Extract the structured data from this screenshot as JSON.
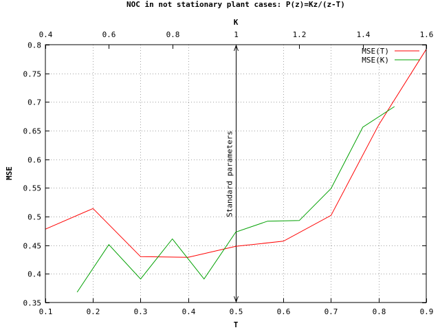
{
  "chart_data": {
    "type": "line",
    "title": "NOC in not stationary plant cases: P(z)=Kz/(z-T)",
    "xlabel": "T",
    "x2label": "K",
    "ylabel": "MSE",
    "xlim": [
      0.1,
      0.9
    ],
    "x2lim": [
      0.4,
      1.6
    ],
    "ylim": [
      0.35,
      0.8
    ],
    "x_ticks": [
      "0.1",
      "0.2",
      "0.3",
      "0.4",
      "0.5",
      "0.6",
      "0.7",
      "0.8",
      "0.9"
    ],
    "x2_ticks": [
      "0.4",
      "0.6",
      "0.8",
      "1",
      "1.2",
      "1.4",
      "1.6"
    ],
    "y_ticks": [
      "0.35",
      "0.4",
      "0.45",
      "0.5",
      "0.55",
      "0.6",
      "0.65",
      "0.7",
      "0.75",
      "0.8"
    ],
    "grid": true,
    "legend_position": "top-right",
    "series": [
      {
        "name": "MSE(T)",
        "axis": "x",
        "color": "#ff0000",
        "points": [
          [
            0.1,
            0.478
          ],
          [
            0.2,
            0.514
          ],
          [
            0.3,
            0.43
          ],
          [
            0.4,
            0.429
          ],
          [
            0.5,
            0.448
          ],
          [
            0.6,
            0.457
          ],
          [
            0.7,
            0.502
          ],
          [
            0.8,
            0.66
          ],
          [
            0.9,
            0.792
          ]
        ]
      },
      {
        "name": "MSE(K)",
        "axis": "x2",
        "color": "#00a000",
        "points": [
          [
            0.5,
            0.368
          ],
          [
            0.6,
            0.451
          ],
          [
            0.7,
            0.391
          ],
          [
            0.8,
            0.461
          ],
          [
            0.9,
            0.391
          ],
          [
            1.0,
            0.473
          ],
          [
            1.1,
            0.492
          ],
          [
            1.2,
            0.493
          ],
          [
            1.3,
            0.549
          ],
          [
            1.4,
            0.656
          ],
          [
            1.5,
            0.692
          ]
        ]
      }
    ],
    "annotation": {
      "text": "Standard parameters",
      "x": 0.5,
      "y_range": [
        0.35,
        0.8
      ]
    }
  }
}
